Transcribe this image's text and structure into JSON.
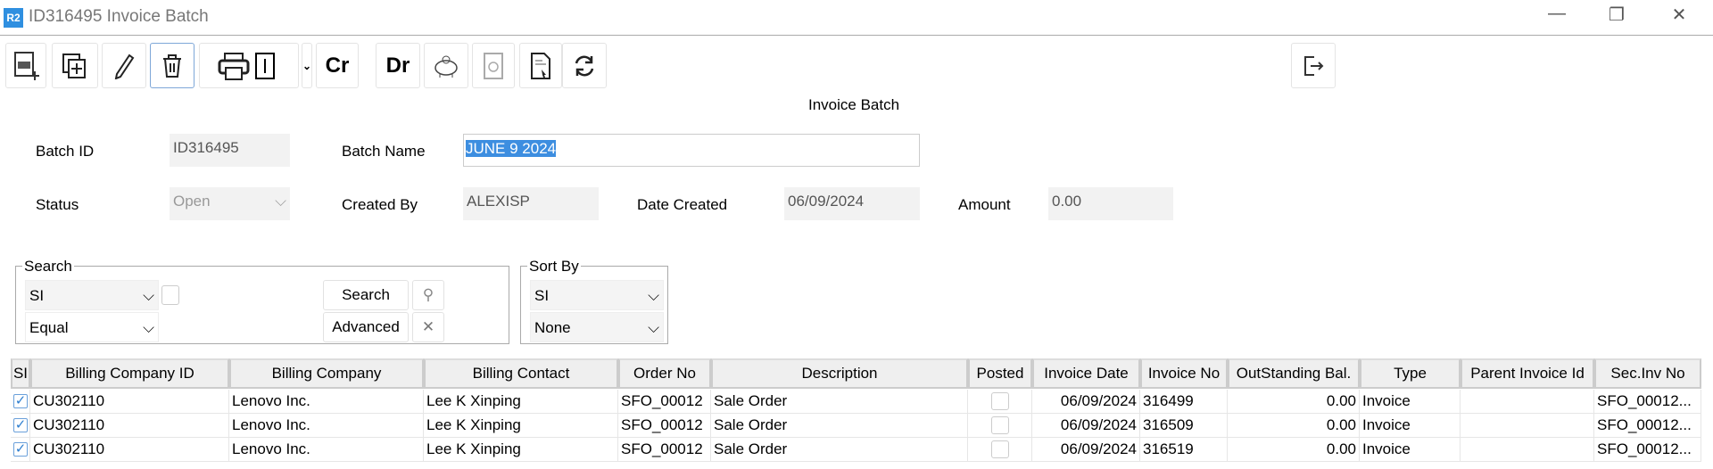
{
  "window": {
    "logo": "R2",
    "title": "ID316495 Invoice Batch",
    "minimize": "—",
    "restore": "❐",
    "close": "✕"
  },
  "toolbar": {
    "cr_label": "Cr",
    "dr_label": "Dr",
    "icons": [
      "new-document-icon",
      "copy-add-icon",
      "pencil-icon",
      "trash-icon",
      "printer-icon",
      "dropdown-chevron-icon",
      "piggy-bank-icon",
      "void-icon",
      "report-select-icon",
      "refresh-icon",
      "exit-icon"
    ]
  },
  "form": {
    "heading": "Invoice Batch",
    "batch_id_label": "Batch ID",
    "batch_id": "ID316495",
    "batch_name_label": "Batch Name",
    "batch_name": "JUNE 9 2024",
    "status_label": "Status",
    "status": "Open",
    "created_by_label": "Created By",
    "created_by": "ALEXISP",
    "date_created_label": "Date Created",
    "date_created": "06/09/2024",
    "amount_label": "Amount",
    "amount": "0.00"
  },
  "search": {
    "legend": "Search",
    "field": "SI",
    "operator": "Equal",
    "search_button": "Search",
    "advanced_button": "Advanced"
  },
  "sort": {
    "legend": "Sort By",
    "field": "SI",
    "order": "None"
  },
  "table": {
    "columns": [
      "SI",
      "Billing Company ID",
      "Billing Company",
      "Billing Contact",
      "Order No",
      "Description",
      "Posted",
      "Invoice Date",
      "Invoice No",
      "OutStanding Bal.",
      "Type",
      "Parent Invoice Id",
      "Sec.Inv No"
    ],
    "rows": [
      {
        "selected": true,
        "company_id": "CU302110",
        "company": "Lenovo Inc.",
        "contact": "Lee K Xinping",
        "order_no": "SFO_00012",
        "description": "Sale Order",
        "posted": false,
        "invoice_date": "06/09/2024",
        "invoice_no": "316499",
        "balance": "0.00",
        "type": "Invoice",
        "parent": "",
        "sec_inv": "SFO_00012..."
      },
      {
        "selected": true,
        "company_id": "CU302110",
        "company": "Lenovo Inc.",
        "contact": "Lee K Xinping",
        "order_no": "SFO_00012",
        "description": "Sale Order",
        "posted": false,
        "invoice_date": "06/09/2024",
        "invoice_no": "316509",
        "balance": "0.00",
        "type": "Invoice",
        "parent": "",
        "sec_inv": "SFO_00012..."
      },
      {
        "selected": true,
        "company_id": "CU302110",
        "company": "Lenovo Inc.",
        "contact": "Lee K Xinping",
        "order_no": "SFO_00012",
        "description": "Sale Order",
        "posted": false,
        "invoice_date": "06/09/2024",
        "invoice_no": "316519",
        "balance": "0.00",
        "type": "Invoice",
        "parent": "",
        "sec_inv": "SFO_00012..."
      }
    ]
  }
}
